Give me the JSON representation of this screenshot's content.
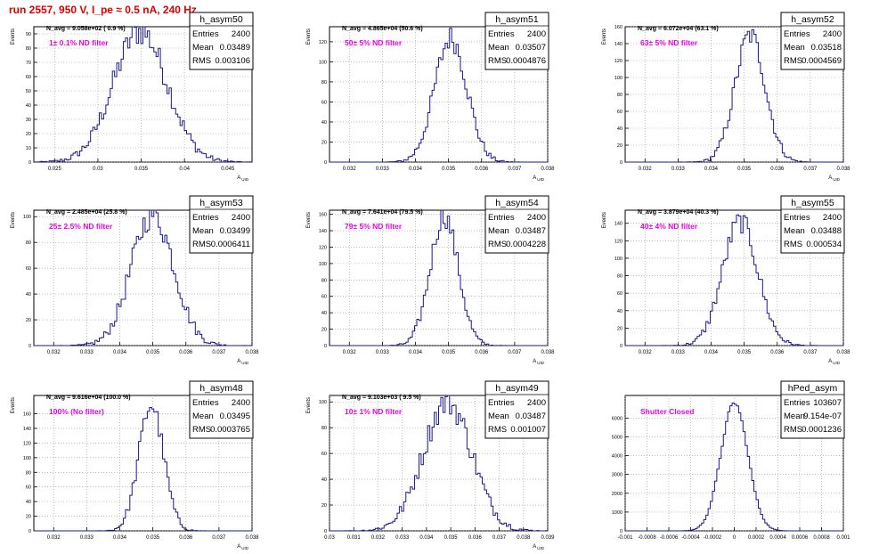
{
  "title": "run 2557,   950 V, I_pe ≈ 0.5 nA, 240 Hz",
  "colors": {
    "hist": "#1a1a8c",
    "annotation": "#ee00ee",
    "title": "#e00000",
    "grid": "#999999"
  },
  "chart_data": [
    {
      "type": "histogram",
      "name": "h_asym50",
      "entries": "2400",
      "mean": "0.03489",
      "rms": "0.003106",
      "navg": "N_avg = 9.058e+02 ( 0.9 %)",
      "label": "1± 0.1% ND filter",
      "xlabel": "A_UID",
      "ylabel": "Events",
      "xlim": [
        0.0226,
        0.0478
      ],
      "ylim": [
        0,
        95
      ],
      "xticks": [
        0.025,
        0.03,
        0.035,
        0.04,
        0.045
      ],
      "xtick_labels": [
        "0.025",
        "0.03",
        "0.035",
        "0.04",
        "0.045"
      ],
      "yticks": [
        0,
        10,
        20,
        30,
        40,
        50,
        60,
        70,
        80,
        90
      ],
      "mu": 0.03489,
      "sigma": 0.003106,
      "peak": 92,
      "nbins": 100
    },
    {
      "type": "histogram",
      "name": "h_asym51",
      "entries": "2400",
      "mean": "0.03507",
      "rms": "0.0004876",
      "navg": "N_avg = 4.865e+04 (50.6 %)",
      "label": "50± 5% ND filter",
      "xlabel": "A_UID",
      "ylabel": "Events",
      "xlim": [
        0.0314,
        0.038
      ],
      "ylim": [
        0,
        135
      ],
      "xticks": [
        0.032,
        0.033,
        0.034,
        0.035,
        0.036,
        0.037,
        0.038
      ],
      "xtick_labels": [
        "0.032",
        "0.033",
        "0.034",
        "0.035",
        "0.036",
        "0.037",
        "0.038"
      ],
      "yticks": [
        0,
        20,
        40,
        60,
        80,
        100,
        120
      ],
      "mu": 0.03507,
      "sigma": 0.0004876,
      "peak": 124,
      "nbins": 100
    },
    {
      "type": "histogram",
      "name": "h_asym52",
      "entries": "2400",
      "mean": "0.03518",
      "rms": "0.0004569",
      "navg": "N_avg = 6.072e+04 (63.1 %)",
      "label": "63± 5% ND filter",
      "xlabel": "A_UID",
      "ylabel": "Events",
      "xlim": [
        0.0314,
        0.038
      ],
      "ylim": [
        0,
        160
      ],
      "xticks": [
        0.032,
        0.033,
        0.034,
        0.035,
        0.036,
        0.037,
        0.038
      ],
      "xtick_labels": [
        "0.032",
        "0.033",
        "0.034",
        "0.035",
        "0.036",
        "0.037",
        "0.038"
      ],
      "yticks": [
        0,
        20,
        40,
        60,
        80,
        100,
        120,
        140,
        160
      ],
      "mu": 0.03518,
      "sigma": 0.0004569,
      "peak": 150,
      "nbins": 100
    },
    {
      "type": "histogram",
      "name": "h_asym53",
      "entries": "2400",
      "mean": "0.03499",
      "rms": "0.0006411",
      "navg": "N_avg = 2.485e+04 (25.8 %)",
      "label": "25± 2.5% ND filter",
      "xlabel": "A_UID",
      "ylabel": "Events",
      "xlim": [
        0.0314,
        0.038
      ],
      "ylim": [
        0,
        105
      ],
      "xticks": [
        0.032,
        0.033,
        0.034,
        0.035,
        0.036,
        0.037,
        0.038
      ],
      "xtick_labels": [
        "0.032",
        "0.033",
        "0.034",
        "0.035",
        "0.036",
        "0.037",
        "0.038"
      ],
      "yticks": [
        0,
        20,
        40,
        60,
        80,
        100
      ],
      "mu": 0.03499,
      "sigma": 0.0006411,
      "peak": 102,
      "nbins": 100
    },
    {
      "type": "histogram",
      "name": "h_asym54",
      "entries": "2400",
      "mean": "0.03487",
      "rms": "0.0004228",
      "navg": "N_avg = 7.641e+04 (79.5 %)",
      "label": "79± 5% ND filter",
      "xlabel": "A_UID",
      "ylabel": "Events",
      "xlim": [
        0.0314,
        0.038
      ],
      "ylim": [
        0,
        165
      ],
      "xticks": [
        0.032,
        0.033,
        0.034,
        0.035,
        0.036,
        0.037,
        0.038
      ],
      "xtick_labels": [
        "0.032",
        "0.033",
        "0.034",
        "0.035",
        "0.036",
        "0.037",
        "0.038"
      ],
      "yticks": [
        0,
        20,
        40,
        60,
        80,
        100,
        120,
        140,
        160
      ],
      "mu": 0.03487,
      "sigma": 0.0004228,
      "peak": 158,
      "nbins": 100
    },
    {
      "type": "histogram",
      "name": "h_asym55",
      "entries": "2400",
      "mean": "0.03488",
      "rms": "0.000534",
      "navg": "N_avg = 3.879e+04 (40.3 %)",
      "label": "40± 4% ND filter",
      "xlabel": "A_UID",
      "ylabel": "Events",
      "xlim": [
        0.0314,
        0.038
      ],
      "ylim": [
        0,
        155
      ],
      "xticks": [
        0.032,
        0.033,
        0.034,
        0.035,
        0.036,
        0.037,
        0.038
      ],
      "xtick_labels": [
        "0.032",
        "0.033",
        "0.034",
        "0.035",
        "0.036",
        "0.037",
        "0.038"
      ],
      "yticks": [
        0,
        20,
        40,
        60,
        80,
        100,
        120,
        140
      ],
      "mu": 0.03488,
      "sigma": 0.000534,
      "peak": 142,
      "nbins": 100
    },
    {
      "type": "histogram",
      "name": "h_asym48",
      "entries": "2400",
      "mean": "0.03495",
      "rms": "0.0003765",
      "navg": "N_avg = 9.616e+04 (100.0 %)",
      "label": "100% (No filter)",
      "xlabel": "A_UID",
      "ylabel": "Events",
      "xlim": [
        0.0314,
        0.038
      ],
      "ylim": [
        0,
        185
      ],
      "xticks": [
        0.032,
        0.033,
        0.034,
        0.035,
        0.036,
        0.037,
        0.038
      ],
      "xtick_labels": [
        "0.032",
        "0.033",
        "0.034",
        "0.035",
        "0.036",
        "0.037",
        "0.038"
      ],
      "yticks": [
        0,
        20,
        40,
        60,
        80,
        100,
        120,
        140,
        160
      ],
      "mu": 0.03495,
      "sigma": 0.0003765,
      "peak": 172,
      "nbins": 100
    },
    {
      "type": "histogram",
      "name": "h_asym49",
      "entries": "2400",
      "mean": "0.03487",
      "rms": "0.001007",
      "navg": "N_avg = 9.103e+03 ( 9.5 %)",
      "label": "10± 1% ND filter",
      "xlabel": "A_UID",
      "ylabel": "Events",
      "xlim": [
        0.03,
        0.039
      ],
      "ylim": [
        0,
        105
      ],
      "xticks": [
        0.03,
        0.031,
        0.032,
        0.033,
        0.034,
        0.035,
        0.036,
        0.037,
        0.038,
        0.039
      ],
      "xtick_labels": [
        "0.03",
        "0.031",
        "0.032",
        "0.033",
        "0.034",
        "0.035",
        "0.036",
        "0.037",
        "0.038",
        "0.039"
      ],
      "yticks": [
        0,
        20,
        40,
        60,
        80,
        100
      ],
      "mu": 0.03487,
      "sigma": 0.001007,
      "peak": 100,
      "nbins": 100
    },
    {
      "type": "histogram",
      "name": "hPed_asym",
      "entries": "103607",
      "mean": "9.154e-07",
      "rms": "0.0001236",
      "navg": "",
      "label": "Shutter Closed",
      "xlabel": "",
      "ylabel": "",
      "xlim": [
        -0.001,
        0.001
      ],
      "ylim": [
        0,
        7200
      ],
      "xticks": [
        -0.001,
        -0.0008,
        -0.0006,
        -0.0004,
        -0.0002,
        0,
        0.0002,
        0.0004,
        0.0006,
        0.0008,
        0.001
      ],
      "xtick_labels": [
        "-0.001",
        "-0.0008",
        "-0.0006",
        "-0.0004",
        "-0.0002",
        "0",
        "0.0002",
        "0.0004",
        "0.0006",
        "0.0008",
        "0.001"
      ],
      "yticks": [
        0,
        1000,
        2000,
        3000,
        4000,
        5000,
        6000
      ],
      "mu": 9e-07,
      "sigma": 0.0001236,
      "peak": 6800,
      "nbins": 100
    }
  ]
}
